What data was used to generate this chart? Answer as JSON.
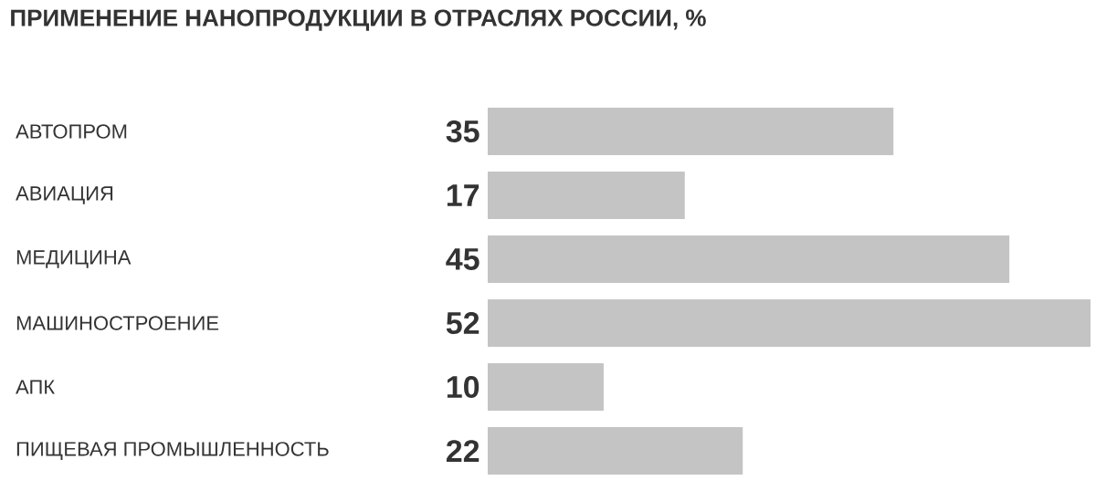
{
  "chart_data": {
    "type": "bar",
    "orientation": "horizontal",
    "title": "ПРИМЕНЕНИЕ НАНОПРОДУКЦИИ В ОТРАСЛЯХ РОССИИ, %",
    "categories": [
      "АВТОПРОМ",
      "АВИАЦИЯ",
      "МЕДИЦИНА",
      "МАШИНОСТРОЕНИЕ",
      "АПК",
      "ПИЩЕВАЯ ПРОМЫШЛЕННОСТЬ"
    ],
    "values": [
      35,
      17,
      45,
      52,
      10,
      22
    ],
    "color": "#c4c4c4",
    "data_labels": true
  }
}
